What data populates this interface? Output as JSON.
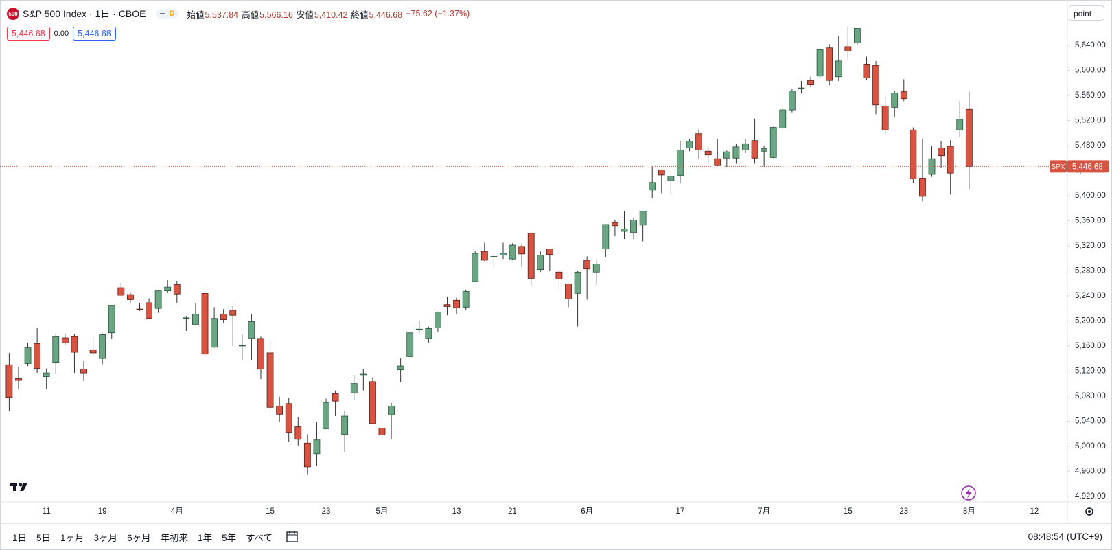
{
  "header": {
    "logo": "500",
    "symbol": "S&P 500 Index · 1日 · CBOE",
    "badge": "D",
    "ohlc": [
      {
        "label": "始値",
        "value": "5,537.84"
      },
      {
        "label": "高値",
        "value": "5,566.16"
      },
      {
        "label": "安値",
        "value": "5,410.42"
      },
      {
        "label": "終値",
        "value": "5,446.68"
      }
    ],
    "change": "−75.62 (−1.37%)"
  },
  "price_badges": [
    "5,446.68",
    "0.00",
    "5,446.68"
  ],
  "scale_button": "point",
  "range_buttons": [
    "1日",
    "5日",
    "1ヶ月",
    "3ヶ月",
    "6ヶ月",
    "年初来",
    "1年",
    "5年",
    "すべて"
  ],
  "clock": "08:48:54 (UTC+9)",
  "chart_data": {
    "type": "candlestick",
    "x": [
      "03-05",
      "03-06",
      "03-07",
      "03-08",
      "03-11",
      "03-12",
      "03-13",
      "03-14",
      "03-15",
      "03-18",
      "03-19",
      "03-20",
      "03-21",
      "03-22",
      "03-25",
      "03-26",
      "03-27",
      "03-28",
      "04-01",
      "04-02",
      "04-03",
      "04-04",
      "04-05",
      "04-08",
      "04-09",
      "04-10",
      "04-11",
      "04-12",
      "04-15",
      "04-16",
      "04-17",
      "04-18",
      "04-19",
      "04-22",
      "04-23",
      "04-24",
      "04-25",
      "04-26",
      "04-29",
      "04-30",
      "05-01",
      "05-02",
      "05-03",
      "05-06",
      "05-07",
      "05-08",
      "05-09",
      "05-10",
      "05-13",
      "05-14",
      "05-15",
      "05-16",
      "05-17",
      "05-20",
      "05-21",
      "05-22",
      "05-23",
      "05-24",
      "05-28",
      "05-29",
      "05-30",
      "05-31",
      "06-03",
      "06-04",
      "06-05",
      "06-06",
      "06-07",
      "06-10",
      "06-11",
      "06-12",
      "06-13",
      "06-14",
      "06-17",
      "06-18",
      "06-20",
      "06-21",
      "06-24",
      "06-25",
      "06-26",
      "06-27",
      "06-28",
      "07-01",
      "07-02",
      "07-03",
      "07-05",
      "07-08",
      "07-09",
      "07-10",
      "07-11",
      "07-12",
      "07-15",
      "07-16",
      "07-17",
      "07-18",
      "07-19",
      "07-22",
      "07-23",
      "07-24",
      "07-25",
      "07-26",
      "07-29",
      "07-30",
      "07-31",
      "08-01"
    ],
    "open": [
      5130,
      5108,
      5132,
      5164,
      5111,
      5134,
      5173,
      5175,
      5123,
      5154,
      5140,
      5181,
      5253,
      5242,
      5219,
      5229,
      5220,
      5248,
      5258,
      5204,
      5194,
      5244,
      5158,
      5211,
      5217,
      5160,
      5172,
      5172,
      5149,
      5064,
      5068,
      5031,
      5005,
      4988,
      5028,
      5084,
      5019,
      5085,
      5114,
      5103,
      5029,
      5050,
      5122,
      5143,
      5187,
      5172,
      5189,
      5226,
      5233,
      5222,
      5263,
      5311,
      5303,
      5305,
      5299,
      5319,
      5340,
      5282,
      5315,
      5278,
      5259,
      5244,
      5297,
      5278,
      5315,
      5357,
      5343,
      5341,
      5353,
      5409,
      5441,
      5424,
      5432,
      5476,
      5499,
      5471,
      5459,
      5460,
      5460,
      5473,
      5488,
      5471,
      5461,
      5508,
      5537,
      5572,
      5584,
      5591,
      5636,
      5590,
      5638,
      5644,
      5610,
      5608,
      5543,
      5541,
      5566,
      5505,
      5428,
      5434,
      5476,
      5479,
      5505,
      5537.84
    ],
    "high": [
      5149,
      5127,
      5165,
      5189,
      5124,
      5179,
      5180,
      5179,
      5136,
      5175,
      5180,
      5225,
      5261,
      5246,
      5229,
      5236,
      5249,
      5265,
      5264,
      5208,
      5228,
      5256,
      5222,
      5219,
      5224,
      5178,
      5211,
      5175,
      5168,
      5079,
      5077,
      5046,
      5019,
      5038,
      5076,
      5089,
      5057,
      5114,
      5123,
      5110,
      5096,
      5069,
      5140,
      5181,
      5200,
      5191,
      5215,
      5239,
      5237,
      5250,
      5311,
      5325,
      5305,
      5325,
      5324,
      5323,
      5342,
      5311,
      5315,
      5282,
      5260,
      5280,
      5303,
      5298,
      5354,
      5362,
      5375,
      5365,
      5375,
      5447,
      5442,
      5432,
      5488,
      5490,
      5506,
      5478,
      5490,
      5472,
      5483,
      5490,
      5523,
      5479,
      5510,
      5539,
      5570,
      5583,
      5590,
      5635,
      5642,
      5655,
      5670,
      5667,
      5622,
      5615,
      5558,
      5567,
      5586,
      5509,
      5491,
      5480,
      5487,
      5489,
      5551,
      5566.16
    ],
    "low": [
      5056,
      5092,
      5128,
      5117,
      5091,
      5115,
      5161,
      5117,
      5104,
      5146,
      5131,
      5172,
      5240,
      5229,
      5216,
      5203,
      5213,
      5245,
      5229,
      5184,
      5194,
      5146,
      5157,
      5197,
      5160,
      5138,
      5138,
      5107,
      5052,
      5039,
      5007,
      5001,
      4954,
      4969,
      5027,
      5048,
      4991,
      5073,
      5089,
      5035,
      5013,
      5011,
      5102,
      5143,
      5181,
      5165,
      5183,
      5209,
      5211,
      5217,
      5263,
      5296,
      5283,
      5299,
      5297,
      5286,
      5256,
      5278,
      5280,
      5252,
      5222,
      5191,
      5234,
      5257,
      5302,
      5335,
      5331,
      5331,
      5327,
      5396,
      5404,
      5403,
      5420,
      5471,
      5459,
      5452,
      5447,
      5446,
      5451,
      5468,
      5451,
      5446,
      5460,
      5507,
      5533,
      5563,
      5574,
      5586,
      5576,
      5583,
      5616,
      5640,
      5584,
      5530,
      5497,
      5525,
      5551,
      5420,
      5391,
      5430,
      5444,
      5402,
      5493,
      5410.42
    ],
    "close": [
      5078,
      5105,
      5157,
      5124,
      5117,
      5175,
      5165,
      5150,
      5117,
      5149,
      5178,
      5225,
      5241,
      5234,
      5218,
      5204,
      5248,
      5254,
      5243,
      5205,
      5211,
      5147,
      5204,
      5202,
      5209,
      5161,
      5199,
      5123,
      5062,
      5051,
      5022,
      5011,
      4967,
      5010,
      5070,
      5072,
      5048,
      5100,
      5116,
      5036,
      5018,
      5064,
      5128,
      5181,
      5187,
      5188,
      5214,
      5223,
      5221,
      5247,
      5308,
      5297,
      5303,
      5308,
      5321,
      5307,
      5268,
      5305,
      5306,
      5267,
      5235,
      5278,
      5283,
      5291,
      5354,
      5352,
      5347,
      5361,
      5375,
      5421,
      5433,
      5431,
      5473,
      5487,
      5473,
      5465,
      5448,
      5470,
      5478,
      5483,
      5460,
      5475,
      5509,
      5537,
      5567,
      5572,
      5577,
      5633,
      5584,
      5615,
      5631,
      5667,
      5588,
      5545,
      5505,
      5564,
      5555,
      5427,
      5399,
      5459,
      5464,
      5436,
      5522,
      5446.68
    ],
    "up_color": "#6ba583",
    "down_color": "#d75442",
    "up_border": "#225437",
    "down_border": "#5b1a13",
    "wick_color": "#333333",
    "ylim": [
      4911,
      5707
    ],
    "yticks": [
      {
        "value": 4920,
        "label": "4,920.00"
      },
      {
        "value": 4960,
        "label": "4,960.00"
      },
      {
        "value": 5000,
        "label": "5,000.00"
      },
      {
        "value": 5040,
        "label": "5,040.00"
      },
      {
        "value": 5080,
        "label": "5,080.00"
      },
      {
        "value": 5120,
        "label": "5,120.00"
      },
      {
        "value": 5160,
        "label": "5,160.00"
      },
      {
        "value": 5200,
        "label": "5,200.00"
      },
      {
        "value": 5240,
        "label": "5,240.00"
      },
      {
        "value": 5280,
        "label": "5,280.00"
      },
      {
        "value": 5320,
        "label": "5,320.00"
      },
      {
        "value": 5360,
        "label": "5,360.00"
      },
      {
        "value": 5400,
        "label": "5,400.00"
      },
      {
        "value": 5440,
        "label": "5,440.00"
      },
      {
        "value": 5480,
        "label": "5,480.00"
      },
      {
        "value": 5520,
        "label": "5,520.00"
      },
      {
        "value": 5560,
        "label": "5,560.00"
      },
      {
        "value": 5600,
        "label": "5,600.00"
      },
      {
        "value": 5640,
        "label": "5,640.00"
      }
    ],
    "xticks": [
      {
        "value": 4,
        "label": "11"
      },
      {
        "value": 10,
        "label": "19"
      },
      {
        "value": 18,
        "label": "4月"
      },
      {
        "value": 28,
        "label": "15"
      },
      {
        "value": 34,
        "label": "23"
      },
      {
        "value": 40,
        "label": "5月"
      },
      {
        "value": 48,
        "label": "13"
      },
      {
        "value": 54,
        "label": "21"
      },
      {
        "value": 62,
        "label": "6月"
      },
      {
        "value": 72,
        "label": "17"
      },
      {
        "value": 81,
        "label": "7月"
      },
      {
        "value": 90,
        "label": "15"
      },
      {
        "value": 96,
        "label": "23"
      },
      {
        "value": 103,
        "label": "8月"
      },
      {
        "value": 110,
        "label": "12"
      }
    ],
    "grid": false,
    "last_price": {
      "symbol": "SPX",
      "label": "5,446.68"
    }
  }
}
